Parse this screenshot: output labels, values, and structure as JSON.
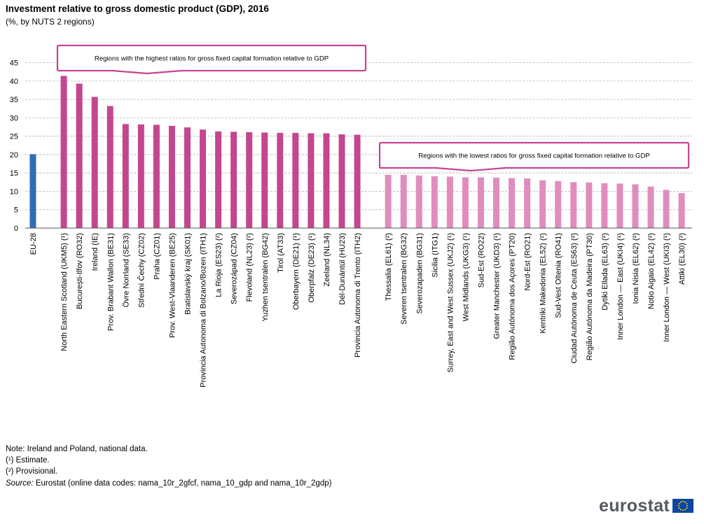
{
  "title": "Investment relative to gross domestic product (GDP), 2016",
  "subtitle": "(%, by NUTS  2 regions)",
  "colors": {
    "eu": "#2e6eb5",
    "highest": "#c4468f",
    "lowest": "#e08dbe",
    "callout_border": "#c4468f",
    "grid": "#b0b0b0",
    "axis": "#555555",
    "logo_text": "#555a60",
    "flag_blue": "#0d47a1",
    "flag_star": "#ffd600"
  },
  "callouts": {
    "highest": "Regions  with  the  highest  ratios  for  gross  fixed capital  formation  relative  to  GDP",
    "lowest": "Regions  with  the  lowest  ratios  for  gross  fixed  capital  formation  relative  to  GDP"
  },
  "chart_data": {
    "type": "bar",
    "ylim": [
      0,
      45
    ],
    "yticks": [
      0,
      5,
      10,
      15,
      20,
      25,
      30,
      35,
      40,
      45
    ],
    "grid": true,
    "groups": [
      {
        "name": "eu",
        "bars": [
          {
            "label": "EU-28",
            "value": 20.1
          }
        ]
      },
      {
        "name": "highest",
        "bars": [
          {
            "label": "North Eastern Scotland (UKM5) (¹)",
            "value": 41.4
          },
          {
            "label": "București-Ilfov (RO32)",
            "value": 39.3
          },
          {
            "label": "Ireland (IE)",
            "value": 35.7
          },
          {
            "label": "Prov. Brabant Wallon (BE31)",
            "value": 33.2
          },
          {
            "label": "Övre Norrland (SE33)",
            "value": 28.3
          },
          {
            "label": "Střední Čechy (CZ02)",
            "value": 28.2
          },
          {
            "label": "Praha (CZ01)",
            "value": 28.1
          },
          {
            "label": "Prov. West-Vlaanderen (BE25)",
            "value": 27.8
          },
          {
            "label": "Bratislavský kraj (SK01)",
            "value": 27.4
          },
          {
            "label": "Provincia Autonoma di Bolzano/Bozen (ITH1)",
            "value": 26.8
          },
          {
            "label": "La Rioja (ES23) (²)",
            "value": 26.3
          },
          {
            "label": "Severozápad (CZ04)",
            "value": 26.2
          },
          {
            "label": "Flevoland (NL23) (²)",
            "value": 26.1
          },
          {
            "label": "Yuzhen tsentralen (BG42)",
            "value": 26.0
          },
          {
            "label": "Tirol (AT33)",
            "value": 25.9
          },
          {
            "label": "Oberbayern (DE21) (¹)",
            "value": 25.9
          },
          {
            "label": "Oberpfalz (DE23) (¹)",
            "value": 25.8
          },
          {
            "label": "Zeeland (NL34)",
            "value": 25.8
          },
          {
            "label": "Dél-Dunántúl (HU23)",
            "value": 25.5
          },
          {
            "label": "Provincia Autonoma di Trento (ITH2)",
            "value": 25.4
          }
        ]
      },
      {
        "name": "lowest",
        "bars": [
          {
            "label": "Thessalia (EL61) (²)",
            "value": 14.5
          },
          {
            "label": "Severen tsentralen (BG32)",
            "value": 14.5
          },
          {
            "label": "Severozapaden (BG31)",
            "value": 14.3
          },
          {
            "label": "Sicilia (ITG1)",
            "value": 14.1
          },
          {
            "label": "Surrey, East and West Sussex (UKJ2) (¹)",
            "value": 14.0
          },
          {
            "label": "West Midlands (UKG3) (¹)",
            "value": 13.8
          },
          {
            "label": "Sud-Est (RO22)",
            "value": 13.8
          },
          {
            "label": "Greater Manchester (UKD3) (¹)",
            "value": 13.7
          },
          {
            "label": "Região Autónoma dos Açores (PT20)",
            "value": 13.6
          },
          {
            "label": "Nord-Est (RO21)",
            "value": 13.5
          },
          {
            "label": "Kentriki Makedonia (EL52) (²)",
            "value": 13.0
          },
          {
            "label": "Sud-Vest Oltenia (RO41)",
            "value": 12.8
          },
          {
            "label": "Ciudad Autónoma de Ceuta (ES63) (²)",
            "value": 12.5
          },
          {
            "label": "Região Autónoma da Madeira (PT30)",
            "value": 12.4
          },
          {
            "label": "Dytiki Ellada (EL63) (²)",
            "value": 12.2
          },
          {
            "label": "Inner London — East (UKI4) (¹)",
            "value": 12.1
          },
          {
            "label": "Ionia Nisia (EL62) (²)",
            "value": 11.9
          },
          {
            "label": "Notio Aigaio (EL42) (²)",
            "value": 11.3
          },
          {
            "label": "Inner London — West (UKI3) (¹)",
            "value": 10.4
          },
          {
            "label": "Attiki (EL30) (²)",
            "value": 9.5
          }
        ]
      }
    ]
  },
  "footnotes": {
    "note": "Note: Ireland and Poland, national data.",
    "estimate": "(¹) Estimate.",
    "provisional": "(²) Provisional.",
    "source_label": "Source:",
    "source_text": "Eurostat (online data codes: nama_10r_2gfcf, nama_10_gdp and nama_10r_2gdp)"
  },
  "logo": {
    "text": "eurostat",
    "icon": "eu-flag-icon"
  }
}
